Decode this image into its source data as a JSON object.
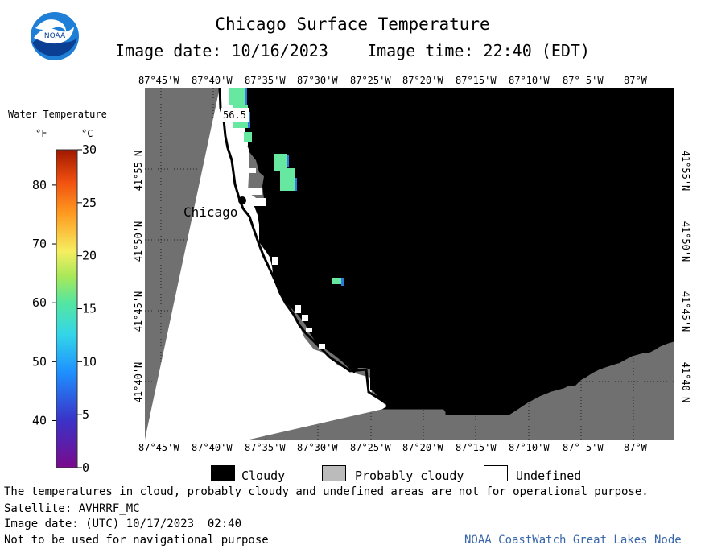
{
  "header": {
    "title": "Chicago Surface Temperature",
    "image_date": "Image date: 10/16/2023",
    "image_time": "Image time: 22:40 (EDT)"
  },
  "logo": {
    "text": "NOAA"
  },
  "map": {
    "longitude_labels": [
      "87°45'W",
      "87°40'W",
      "87°35'W",
      "87°30'W",
      "87°25'W",
      "87°20'W",
      "87°15'W",
      "87°10'W",
      "87° 5'W",
      "87°W"
    ],
    "latitude_labels": [
      "41°55'N",
      "41°50'N",
      "41°45'N",
      "41°40'N"
    ],
    "city_label": "Chicago",
    "temp_label": "56.5"
  },
  "scale": {
    "title": "Water Temperature",
    "unit_f": "°F",
    "unit_c": "°C",
    "f_ticks": [
      "80",
      "70",
      "60",
      "50",
      "40"
    ],
    "c_ticks": [
      "30",
      "25",
      "20",
      "15",
      "10",
      "5",
      "0"
    ],
    "range_f": [
      32,
      86
    ],
    "range_c": [
      0,
      30
    ]
  },
  "legend": {
    "cloudy": "Cloudy",
    "probably_cloudy": "Probably cloudy",
    "undefined": "Undefined"
  },
  "footer": {
    "disclaimer": "The temperatures in cloud, probably cloudy and undefined areas are not for operational purpose.",
    "satellite": "Satellite: AVHRRF_MC",
    "utc_date": "Image date: (UTC) 10/17/2023  02:40",
    "navigation": "Not to be used for navigational purpose",
    "credit": "NOAA CoastWatch Great Lakes Node"
  },
  "colors": {
    "land": "#707070",
    "cloudy": "#000000",
    "probably_cloudy": "#bbbbbb",
    "undefined": "#ffffff",
    "warm_water": "#66e8a0"
  }
}
